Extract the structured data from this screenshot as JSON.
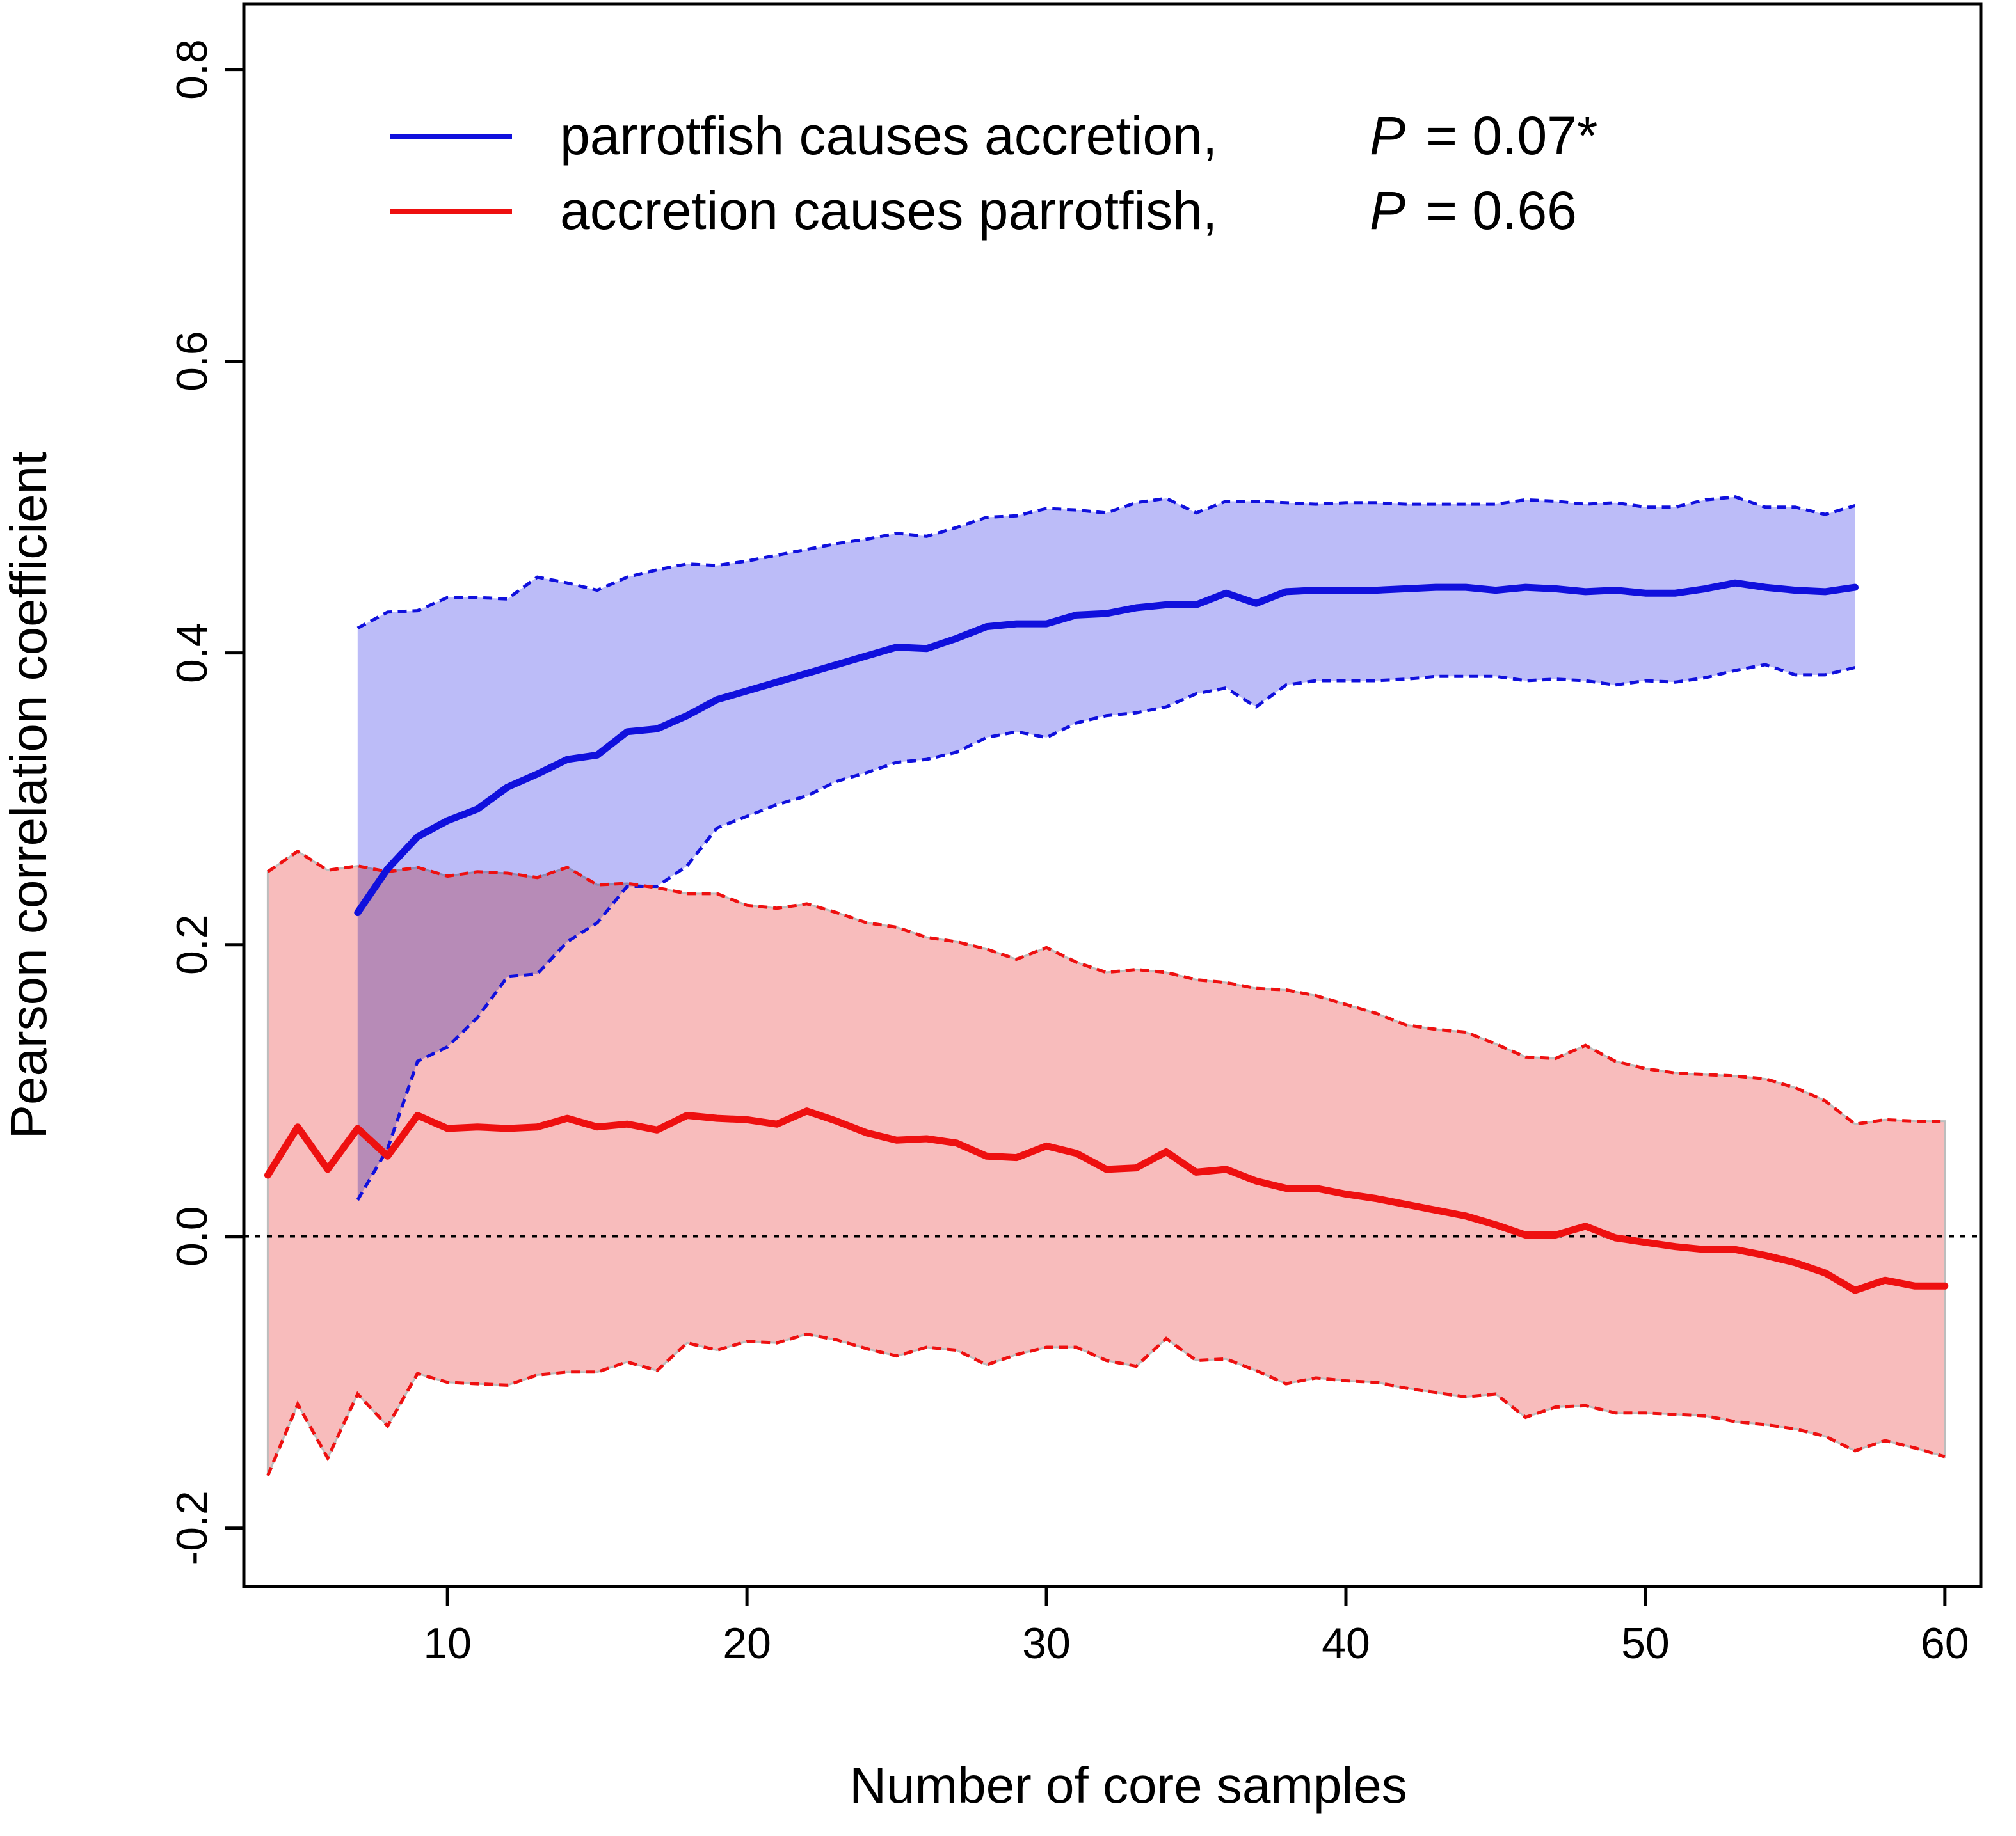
{
  "chart_data": {
    "type": "line",
    "title": "",
    "xlabel": "Number of core samples",
    "ylabel": "Pearson correlation coefficient",
    "xlim": [
      3.2,
      61.2
    ],
    "ylim": [
      -0.24,
      0.845
    ],
    "xticks": [
      10,
      20,
      30,
      40,
      50,
      60
    ],
    "xtick_labels": [
      "10",
      "20",
      "30",
      "40",
      "50",
      "60"
    ],
    "yticks": [
      -0.2,
      0.0,
      0.2,
      0.4,
      0.6,
      0.8
    ],
    "ytick_labels": [
      "-0.2",
      "0.0",
      "0.2",
      "0.4",
      "0.6",
      "0.8"
    ],
    "zero_line": 0,
    "legend": {
      "position": "top",
      "entries": [
        {
          "label": "parrotfish causes accretion,",
          "p_label": "P",
          "p_value": "= 0.07*",
          "color": "#1010dd"
        },
        {
          "label": "accretion causes parrotfish,",
          "p_label": "P",
          "p_value": "= 0.66",
          "color": "#ee1010"
        }
      ]
    },
    "series": [
      {
        "name": "parrotfish causes accretion",
        "color": "#1010dd",
        "band_color": "#bcbcf8",
        "x": [
          7,
          8,
          9,
          10,
          11,
          12,
          13,
          14,
          15,
          16,
          17,
          18,
          19,
          20,
          21,
          22,
          23,
          24,
          25,
          26,
          27,
          28,
          29,
          30,
          31,
          32,
          33,
          34,
          35,
          36,
          37,
          38,
          39,
          40,
          41,
          42,
          43,
          44,
          45,
          46,
          47,
          48,
          49,
          50,
          51,
          52,
          53,
          54,
          55,
          56,
          57
        ],
        "mean": [
          0.222,
          0.252,
          0.274,
          0.285,
          0.293,
          0.308,
          0.317,
          0.327,
          0.33,
          0.346,
          0.348,
          0.357,
          0.368,
          0.374,
          0.38,
          0.386,
          0.392,
          0.398,
          0.404,
          0.403,
          0.41,
          0.418,
          0.42,
          0.42,
          0.426,
          0.427,
          0.431,
          0.433,
          0.433,
          0.441,
          0.434,
          0.442,
          0.443,
          0.443,
          0.443,
          0.444,
          0.445,
          0.445,
          0.443,
          0.445,
          0.444,
          0.442,
          0.443,
          0.441,
          0.441,
          0.444,
          0.448,
          0.445,
          0.443,
          0.442,
          0.445
        ],
        "upper": [
          0.417,
          0.428,
          0.429,
          0.438,
          0.438,
          0.437,
          0.452,
          0.448,
          0.443,
          0.452,
          0.457,
          0.461,
          0.46,
          0.463,
          0.467,
          0.471,
          0.475,
          0.478,
          0.482,
          0.48,
          0.486,
          0.493,
          0.494,
          0.499,
          0.498,
          0.496,
          0.503,
          0.506,
          0.496,
          0.504,
          0.504,
          0.503,
          0.502,
          0.503,
          0.503,
          0.502,
          0.502,
          0.502,
          0.502,
          0.505,
          0.504,
          0.502,
          0.503,
          0.5,
          0.5,
          0.505,
          0.507,
          0.5,
          0.5,
          0.495,
          0.501
        ],
        "lower": [
          0.025,
          0.06,
          0.12,
          0.13,
          0.15,
          0.178,
          0.18,
          0.202,
          0.215,
          0.24,
          0.24,
          0.254,
          0.28,
          0.288,
          0.296,
          0.302,
          0.312,
          0.318,
          0.325,
          0.327,
          0.332,
          0.342,
          0.346,
          0.342,
          0.352,
          0.357,
          0.359,
          0.363,
          0.372,
          0.376,
          0.363,
          0.378,
          0.381,
          0.381,
          0.381,
          0.382,
          0.384,
          0.384,
          0.384,
          0.381,
          0.382,
          0.381,
          0.378,
          0.381,
          0.38,
          0.383,
          0.388,
          0.392,
          0.385,
          0.385,
          0.39
        ]
      },
      {
        "name": "accretion causes parrotfish",
        "color": "#ee1010",
        "band_color": "#f8bcbc",
        "x": [
          4,
          5,
          6,
          7,
          8,
          9,
          10,
          11,
          12,
          13,
          14,
          15,
          16,
          17,
          18,
          19,
          20,
          21,
          22,
          23,
          24,
          25,
          26,
          27,
          28,
          29,
          30,
          31,
          32,
          33,
          34,
          35,
          36,
          37,
          38,
          39,
          40,
          41,
          42,
          43,
          44,
          45,
          46,
          47,
          48,
          49,
          50,
          51,
          52,
          53,
          54,
          55,
          56,
          57,
          58,
          59,
          60
        ],
        "mean": [
          0.042,
          0.075,
          0.046,
          0.074,
          0.055,
          0.083,
          0.074,
          0.075,
          0.074,
          0.075,
          0.081,
          0.075,
          0.077,
          0.073,
          0.083,
          0.081,
          0.08,
          0.077,
          0.086,
          0.079,
          0.071,
          0.066,
          0.067,
          0.064,
          0.055,
          0.054,
          0.062,
          0.057,
          0.046,
          0.047,
          0.058,
          0.044,
          0.046,
          0.038,
          0.033,
          0.033,
          0.029,
          0.026,
          0.022,
          0.018,
          0.014,
          0.008,
          0.001,
          0.001,
          0.007,
          -0.001,
          -0.004,
          -0.007,
          -0.009,
          -0.009,
          -0.013,
          -0.018,
          -0.025,
          -0.037,
          -0.03,
          -0.034,
          -0.034
        ],
        "upper": [
          0.25,
          0.264,
          0.251,
          0.254,
          0.25,
          0.253,
          0.247,
          0.25,
          0.249,
          0.246,
          0.253,
          0.241,
          0.242,
          0.239,
          0.235,
          0.235,
          0.227,
          0.225,
          0.228,
          0.222,
          0.215,
          0.212,
          0.205,
          0.202,
          0.197,
          0.19,
          0.198,
          0.188,
          0.181,
          0.183,
          0.181,
          0.176,
          0.174,
          0.17,
          0.169,
          0.165,
          0.159,
          0.153,
          0.145,
          0.142,
          0.14,
          0.132,
          0.123,
          0.122,
          0.131,
          0.12,
          0.115,
          0.112,
          0.111,
          0.11,
          0.108,
          0.102,
          0.093,
          0.077,
          0.08,
          0.079,
          0.079
        ],
        "lower": [
          -0.164,
          -0.115,
          -0.152,
          -0.108,
          -0.13,
          -0.094,
          -0.1,
          -0.101,
          -0.102,
          -0.095,
          -0.093,
          -0.093,
          -0.086,
          -0.092,
          -0.073,
          -0.078,
          -0.072,
          -0.073,
          -0.067,
          -0.071,
          -0.077,
          -0.082,
          -0.076,
          -0.078,
          -0.088,
          -0.081,
          -0.076,
          -0.076,
          -0.085,
          -0.089,
          -0.07,
          -0.085,
          -0.084,
          -0.092,
          -0.101,
          -0.097,
          -0.099,
          -0.1,
          -0.104,
          -0.107,
          -0.11,
          -0.108,
          -0.124,
          -0.117,
          -0.116,
          -0.121,
          -0.121,
          -0.122,
          -0.123,
          -0.127,
          -0.129,
          -0.132,
          -0.137,
          -0.147,
          -0.14,
          -0.145,
          -0.151
        ]
      }
    ]
  }
}
